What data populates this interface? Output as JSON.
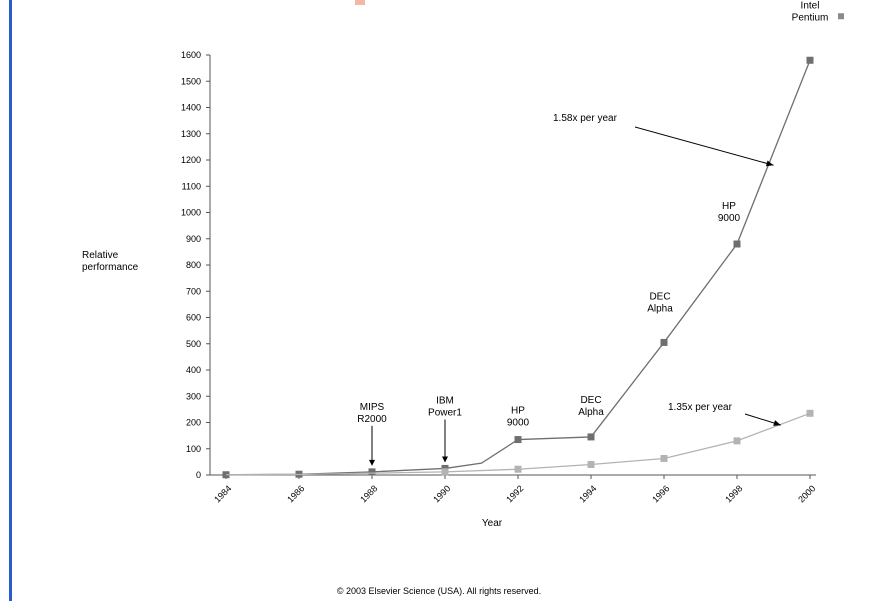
{
  "chart_data": {
    "type": "line",
    "title": "",
    "xlabel": "Year",
    "ylabel_lines": [
      "Relative",
      "performance"
    ],
    "xlim": [
      1984,
      2000
    ],
    "ylim": [
      0,
      1600
    ],
    "xticks": [
      "1984",
      "1986",
      "1988",
      "1990",
      "1992",
      "1994",
      "1996",
      "1998",
      "2000"
    ],
    "yticks": [
      "0",
      "100",
      "200",
      "300",
      "400",
      "500",
      "600",
      "700",
      "800",
      "900",
      "1000",
      "1100",
      "1200",
      "1300",
      "1400",
      "1500",
      "1600"
    ],
    "series": [
      {
        "color": "#6f6f6f",
        "x": [
          1984,
          1986,
          1988,
          1990,
          1991,
          1992,
          1994,
          1996,
          1998,
          2000
        ],
        "y": [
          1,
          3,
          12,
          25,
          45,
          135,
          145,
          505,
          880,
          1580
        ],
        "markers": [
          0,
          1,
          2,
          3,
          5,
          6,
          7,
          8,
          9
        ]
      },
      {
        "color": "#b3b3b3",
        "x": [
          1984,
          1986,
          1988,
          1990,
          1992,
          1994,
          1996,
          1998,
          2000
        ],
        "y": [
          1,
          2,
          7,
          12,
          22,
          40,
          63,
          130,
          235
        ],
        "markers": [
          3,
          4,
          5,
          6,
          7,
          8
        ]
      }
    ],
    "annotations": [
      {
        "lines": [
          "MIPS",
          "R2000"
        ],
        "x": 1988,
        "y": 12,
        "arrow": true
      },
      {
        "lines": [
          "IBM",
          "Power1"
        ],
        "x": 1990,
        "y": 25,
        "arrow": true
      },
      {
        "lines": [
          "HP",
          "9000"
        ],
        "x": 1992,
        "y": 135,
        "arrow": false
      },
      {
        "lines": [
          "DEC",
          "Alpha"
        ],
        "x": 1994,
        "y": 145,
        "arrow": false
      },
      {
        "lines": [
          "DEC",
          "Alpha"
        ],
        "x": 1996,
        "y": 505,
        "arrow": false
      },
      {
        "lines": [
          "HP",
          "9000"
        ],
        "x": 1998,
        "y": 880,
        "arrow": false
      },
      {
        "lines": [
          "Intel",
          "Pentium"
        ],
        "x": 2000,
        "y": 1580,
        "arrow": false
      }
    ],
    "growth_labels": [
      {
        "text": "1.58x per year",
        "points_to": {
          "x": 1999,
          "y": 1180
        }
      },
      {
        "text": "1.35x per year",
        "points_to": {
          "x": 1999.2,
          "y": 190
        }
      }
    ]
  },
  "copyright": "© 2003 Elsevier Science (USA). All rights reserved."
}
